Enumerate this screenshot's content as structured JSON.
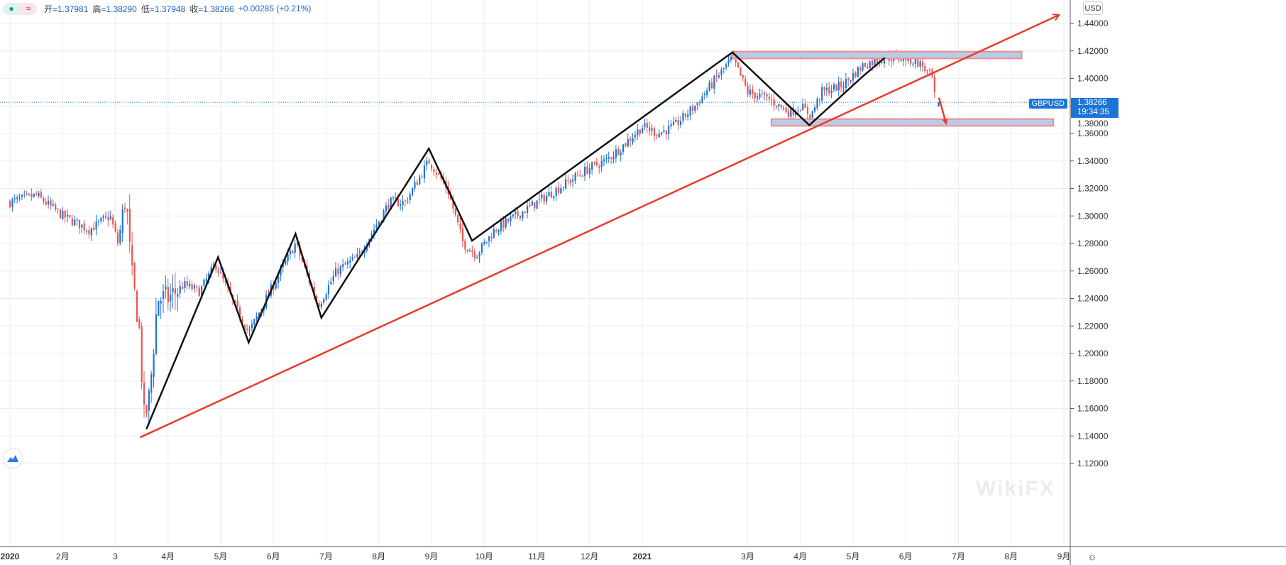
{
  "legend": {
    "open_label": "开",
    "open": "=1.37981",
    "high_label": "高",
    "high": "=1.38290",
    "low_label": "低",
    "low": "=1.37948",
    "close_label": "收",
    "close": "=1.38266",
    "change": "+0.00285 (+0.21%)",
    "icons": [
      "dot-icon",
      "wave-icon"
    ]
  },
  "currency_button": "USD",
  "symbol_label": "GBPUSD",
  "last_price": "1.38266",
  "countdown": "19:34:35",
  "watermark": "WikiFX",
  "colors": {
    "up": "#1e74d6",
    "down": "#ef5350",
    "trend": "#ea3b2c",
    "zigzag": "#111111",
    "box_fill": "#b8cce9",
    "box_border": "#f08c8c",
    "grid": "#e8eef5"
  },
  "chart_data": {
    "type": "candlestick",
    "title": "GBPUSD Daily",
    "y_ticks": [
      "1.44000",
      "1.42000",
      "1.40000",
      "1.38000",
      "1.36000",
      "1.34000",
      "1.32000",
      "1.30000",
      "1.28000",
      "1.26000",
      "1.24000",
      "1.22000",
      "1.20000",
      "1.18000",
      "1.16000",
      "1.14000",
      "1.12000"
    ],
    "ylim": [
      1.12,
      1.44
    ],
    "x_ticks": [
      {
        "m": 0,
        "label": "2020"
      },
      {
        "m": 1,
        "label": "2月"
      },
      {
        "m": 2,
        "label": "3"
      },
      {
        "m": 3,
        "label": "4月"
      },
      {
        "m": 4,
        "label": "5月"
      },
      {
        "m": 5,
        "label": "6月"
      },
      {
        "m": 6,
        "label": "7月"
      },
      {
        "m": 7,
        "label": "8月"
      },
      {
        "m": 8,
        "label": "9月"
      },
      {
        "m": 9,
        "label": "10月"
      },
      {
        "m": 10,
        "label": "11月"
      },
      {
        "m": 11,
        "label": "12月"
      },
      {
        "m": 12,
        "label": "2021"
      },
      {
        "m": 14,
        "label": "3月"
      },
      {
        "m": 15,
        "label": "4月"
      },
      {
        "m": 16,
        "label": "5月"
      },
      {
        "m": 17,
        "label": "6月"
      },
      {
        "m": 18,
        "label": "7月"
      },
      {
        "m": 19,
        "label": "8月"
      },
      {
        "m": 20,
        "label": "9月"
      }
    ],
    "price_path": [
      [
        0,
        1.31
      ],
      [
        0.5,
        1.315
      ],
      [
        1,
        1.3
      ],
      [
        1.5,
        1.29
      ],
      [
        1.9,
        1.3
      ],
      [
        2.05,
        1.28
      ],
      [
        2.2,
        1.315
      ],
      [
        2.3,
        1.26
      ],
      [
        2.45,
        1.22
      ],
      [
        2.55,
        1.15
      ],
      [
        2.65,
        1.17
      ],
      [
        2.8,
        1.24
      ],
      [
        3,
        1.24
      ],
      [
        3.3,
        1.25
      ],
      [
        3.6,
        1.245
      ],
      [
        3.9,
        1.265
      ],
      [
        4.2,
        1.24
      ],
      [
        4.53,
        1.215
      ],
      [
        5,
        1.25
      ],
      [
        5.42,
        1.28
      ],
      [
        5.85,
        1.235
      ],
      [
        6.2,
        1.26
      ],
      [
        6.6,
        1.27
      ],
      [
        7.2,
        1.31
      ],
      [
        7.5,
        1.31
      ],
      [
        7.95,
        1.34
      ],
      [
        8.3,
        1.32
      ],
      [
        8.6,
        1.28
      ],
      [
        8.85,
        1.272
      ],
      [
        9.2,
        1.29
      ],
      [
        9.6,
        1.3
      ],
      [
        10,
        1.31
      ],
      [
        10.4,
        1.32
      ],
      [
        11,
        1.335
      ],
      [
        11.3,
        1.34
      ],
      [
        11.6,
        1.35
      ],
      [
        12,
        1.365
      ],
      [
        12.3,
        1.36
      ],
      [
        12.6,
        1.365
      ],
      [
        13,
        1.38
      ],
      [
        13.4,
        1.4
      ],
      [
        13.71,
        1.415
      ],
      [
        14,
        1.39
      ],
      [
        14.4,
        1.385
      ],
      [
        14.8,
        1.375
      ],
      [
        15,
        1.38
      ],
      [
        15.2,
        1.373
      ],
      [
        15.4,
        1.39
      ],
      [
        15.8,
        1.395
      ],
      [
        16.2,
        1.41
      ],
      [
        16.6,
        1.415
      ],
      [
        17,
        1.415
      ],
      [
        17.3,
        1.41
      ],
      [
        17.5,
        1.4
      ],
      [
        17.56,
        1.3827
      ]
    ],
    "annotations": {
      "zigzag": [
        [
          2.59,
          1.145
        ],
        [
          3.95,
          1.27
        ],
        [
          4.53,
          1.208
        ],
        [
          5.42,
          1.287
        ],
        [
          5.91,
          1.226
        ],
        [
          7.95,
          1.349
        ],
        [
          8.77,
          1.282
        ],
        [
          13.71,
          1.419
        ],
        [
          15.17,
          1.366
        ],
        [
          16.17,
          1.401
        ],
        [
          16.6,
          1.415
        ]
      ],
      "trendline": [
        [
          2.47,
          1.139
        ],
        [
          19.9,
          1.446
        ]
      ],
      "resistance_zone": {
        "from_m": 13.71,
        "to_m": 19.2,
        "low": 1.4145,
        "high": 1.4195
      },
      "support_zone": {
        "from_m": 14.45,
        "to_m": 19.8,
        "low": 1.3655,
        "high": 1.3705
      },
      "arrow": [
        [
          17.63,
          1.386
        ],
        [
          17.76,
          1.368
        ]
      ]
    }
  }
}
